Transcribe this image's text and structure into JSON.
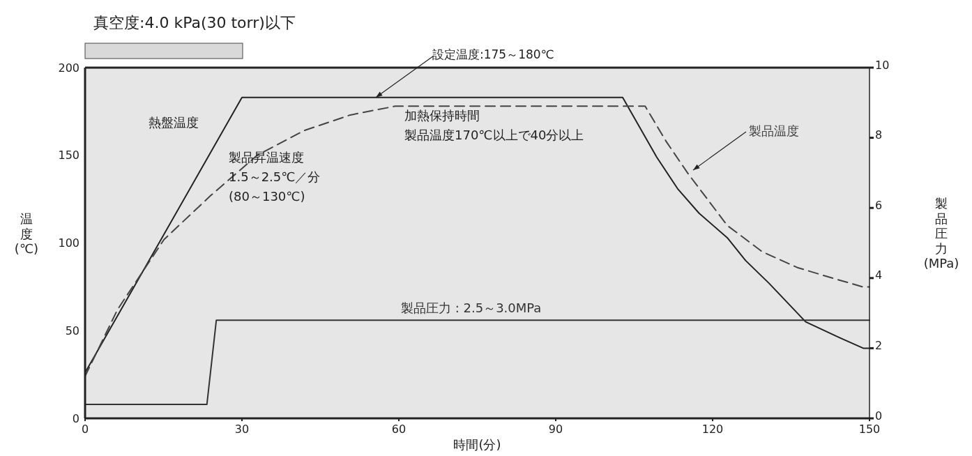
{
  "chart_data": {
    "type": "line",
    "title": "真空度:4.0 kPa(30 torr)以下",
    "xlabel": "時間(分)",
    "ylabel": "温度\n(℃)",
    "y2label": "製品圧力\n(MPa)",
    "xlim": [
      0,
      150
    ],
    "xticks": [
      0,
      30,
      60,
      90,
      120,
      150
    ],
    "ylim": [
      0,
      200
    ],
    "yticks": [
      0,
      50,
      100,
      150,
      200
    ],
    "y2lim": [
      0,
      10
    ],
    "y2ticks": [
      0,
      2,
      4,
      6,
      8,
      10
    ],
    "grid": false,
    "marker": "none",
    "series": [
      {
        "name": "熱盤温度",
        "color": "#222222",
        "line_style": "solid",
        "x": [
          0,
          30,
          102.8,
          109.3,
          113.3,
          117.4,
          122.8,
          126.3,
          130.8,
          137.8,
          144.3,
          148.8,
          150
        ],
        "values": [
          26,
          183,
          183,
          149,
          131,
          117,
          103,
          90,
          77,
          55,
          46,
          40,
          40
        ]
      },
      {
        "name": "製品温度",
        "color": "#444444",
        "line_style": "dashed",
        "x": [
          0,
          6.2,
          15.1,
          24,
          32.9,
          41.8,
          50.7,
          59.3,
          107.1,
          111.1,
          115.2,
          122.8,
          129.5,
          136.2,
          142.9,
          148.7,
          150
        ],
        "values": [
          24,
          62,
          102,
          127,
          150,
          164,
          173,
          178,
          178,
          158,
          140,
          110,
          95,
          86,
          80,
          75,
          75
        ]
      },
      {
        "name": "製品圧力 : 2.5～3.0MPa",
        "color": "#333333",
        "line_style": "solid",
        "axis": "y2",
        "x": [
          0,
          23.3,
          25.1,
          150
        ],
        "values": [
          0.4,
          0.4,
          2.8,
          2.8
        ]
      }
    ],
    "annotations": [
      {
        "text": "設定温度:175～180℃",
        "x": 55.6,
        "y": 183
      },
      "製品昇温速度\n1.5～2.5℃／分\n(80～130℃)",
      "加熱保持時間製品温度170℃以上で40分以上"
    ]
  }
}
